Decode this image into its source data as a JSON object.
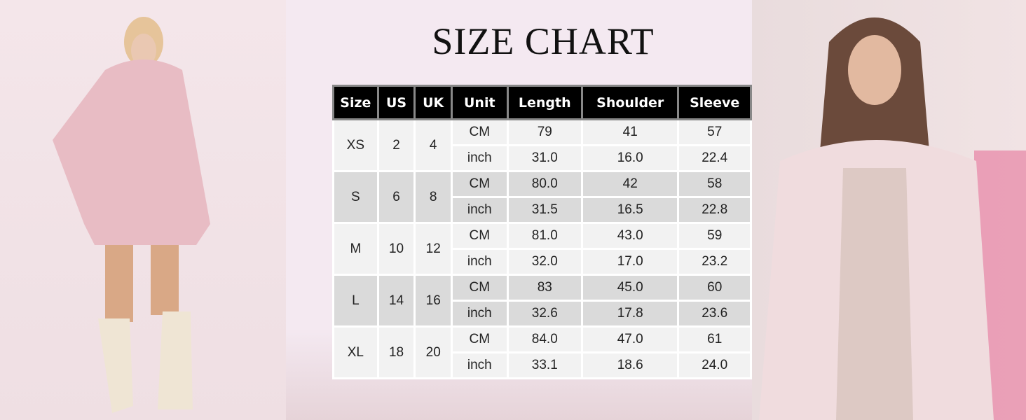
{
  "title": "SIZE CHART",
  "table": {
    "headers": [
      "Size",
      "US",
      "UK",
      "Unit",
      "Length",
      "Shoulder",
      "Sleeve"
    ],
    "rows": [
      {
        "size": "XS",
        "us": "2",
        "uk": "4",
        "cm": [
          "CM",
          "79",
          "41",
          "57"
        ],
        "inch": [
          "inch",
          "31.0",
          "16.0",
          "22.4"
        ]
      },
      {
        "size": "S",
        "us": "6",
        "uk": "8",
        "cm": [
          "CM",
          "80.0",
          "42",
          "58"
        ],
        "inch": [
          "inch",
          "31.5",
          "16.5",
          "22.8"
        ]
      },
      {
        "size": "M",
        "us": "10",
        "uk": "12",
        "cm": [
          "CM",
          "81.0",
          "43.0",
          "59"
        ],
        "inch": [
          "inch",
          "32.0",
          "17.0",
          "23.2"
        ]
      },
      {
        "size": "L",
        "us": "14",
        "uk": "16",
        "cm": [
          "CM",
          "83",
          "45.0",
          "60"
        ],
        "inch": [
          "inch",
          "32.6",
          "17.8",
          "23.6"
        ]
      },
      {
        "size": "XL",
        "us": "18",
        "uk": "20",
        "cm": [
          "CM",
          "84.0",
          "47.0",
          "61"
        ],
        "inch": [
          "inch",
          "33.1",
          "18.6",
          "24.0"
        ]
      }
    ]
  },
  "colors": {
    "header_bg": "#000000",
    "row_light": "#f2f2f2",
    "row_dark": "#dadada",
    "coat": "#e8bcc4"
  }
}
